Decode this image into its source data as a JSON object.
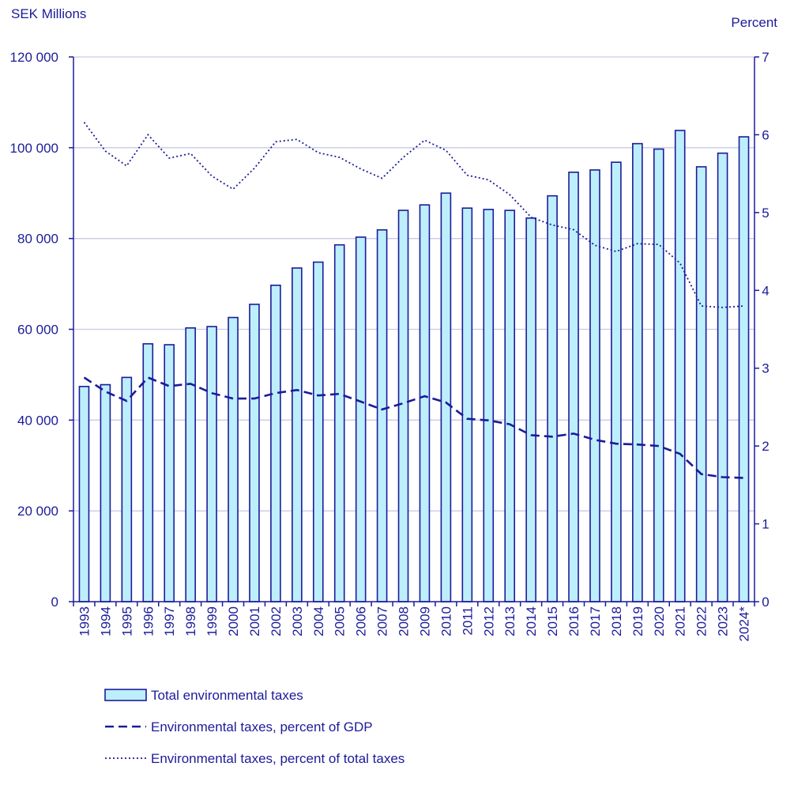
{
  "chart_data": {
    "type": "bar",
    "title": "",
    "left_axis_title": "SEK Millions",
    "right_axis_title": "Percent",
    "categories": [
      "1993",
      "1994",
      "1995",
      "1996",
      "1997",
      "1998",
      "1999",
      "2000",
      "2001",
      "2002",
      "2003",
      "2004",
      "2005",
      "2006",
      "2007",
      "2008",
      "2009",
      "2010",
      "2011",
      "2012",
      "2013",
      "2014",
      "2015",
      "2016",
      "2017",
      "2018",
      "2019",
      "2020",
      "2021",
      "2022",
      "2023",
      "2024*"
    ],
    "left_ylim": [
      0,
      120000
    ],
    "left_ticks": [
      0,
      20000,
      40000,
      60000,
      80000,
      100000,
      120000
    ],
    "left_tick_labels": [
      "0",
      "20 000",
      "40 000",
      "60 000",
      "80 000",
      "100 000",
      "120 000"
    ],
    "right_ylim": [
      0,
      7
    ],
    "right_ticks": [
      0,
      1,
      2,
      3,
      4,
      5,
      6,
      7
    ],
    "right_tick_labels": [
      "0",
      "1",
      "2",
      "3",
      "4",
      "5",
      "6",
      "7"
    ],
    "grid": true,
    "series": [
      {
        "name": "Total environmental taxes",
        "type": "bar",
        "axis": "left",
        "fill": "#bdeefb",
        "stroke": "#1b1b9a",
        "values": [
          47400,
          47800,
          49400,
          56800,
          56600,
          60300,
          60600,
          62600,
          65500,
          69700,
          73500,
          74800,
          78600,
          80300,
          81900,
          86200,
          87400,
          90000,
          86700,
          86400,
          86200,
          84500,
          89400,
          94600,
          95100,
          96800,
          100900,
          99700,
          103800,
          95800,
          98800,
          102400
        ]
      },
      {
        "name": "Environmental taxes, percent of GDP",
        "type": "line",
        "style": "dashed",
        "axis": "right",
        "color": "#1b1b9a",
        "values": [
          2.88,
          2.7,
          2.58,
          2.88,
          2.77,
          2.8,
          2.68,
          2.61,
          2.61,
          2.68,
          2.72,
          2.65,
          2.67,
          2.57,
          2.47,
          2.55,
          2.64,
          2.56,
          2.35,
          2.33,
          2.28,
          2.14,
          2.12,
          2.16,
          2.08,
          2.03,
          2.02,
          2.0,
          1.9,
          1.64,
          1.6,
          1.59
        ]
      },
      {
        "name": "Environmental taxes, percent of total taxes",
        "type": "line",
        "style": "dotted",
        "axis": "right",
        "color": "#1b1b9a",
        "values": [
          6.16,
          5.79,
          5.6,
          6.0,
          5.7,
          5.76,
          5.47,
          5.3,
          5.57,
          5.91,
          5.94,
          5.77,
          5.71,
          5.56,
          5.44,
          5.71,
          5.93,
          5.8,
          5.48,
          5.42,
          5.23,
          4.94,
          4.84,
          4.78,
          4.58,
          4.5,
          4.6,
          4.59,
          4.35,
          3.8,
          3.78,
          3.8
        ]
      }
    ],
    "legend_position": "bottom-left"
  }
}
